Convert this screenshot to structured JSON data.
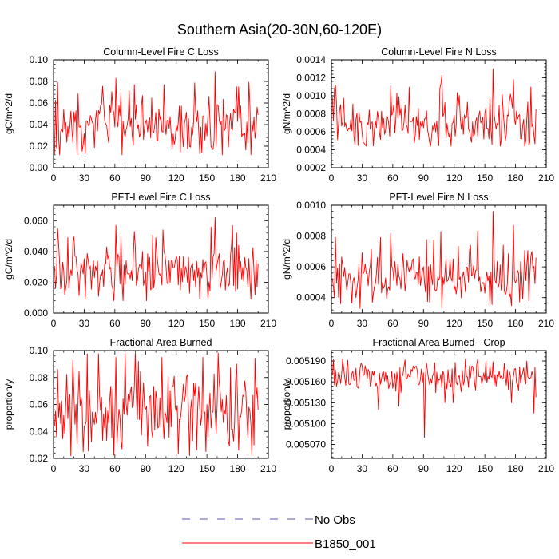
{
  "figure": {
    "title": "Southern Asia(20-30N,60-120E)"
  },
  "legend": [
    {
      "label": "No Obs",
      "style": "dashed",
      "color": "#5a5aa8"
    },
    {
      "label": "B1850_001",
      "style": "solid",
      "color": "#ff0000"
    }
  ],
  "chart_data": [
    {
      "type": "line",
      "title": "Column-Level Fire C Loss",
      "ylabel": "gC/m^2/d",
      "xlim": [
        0,
        210
      ],
      "ylim": [
        0.0,
        0.1
      ],
      "xticks": [
        "0",
        "30",
        "60",
        "90",
        "120",
        "150",
        "180",
        "210"
      ],
      "yticks": [
        "0.00",
        "0.02",
        "0.04",
        "0.06",
        "0.08",
        "0.10"
      ],
      "series": [
        {
          "name": "B1850_001",
          "color": "#ff0000",
          "n": 200,
          "base": 0.037,
          "amp": 0.012,
          "min": 0.012,
          "max": 0.089,
          "peaks": [
            [
              3,
              0.079
            ],
            [
              60,
              0.083
            ],
            [
              65,
              0.07
            ],
            [
              78,
              0.077
            ],
            [
              107,
              0.077
            ],
            [
              157,
              0.089
            ],
            [
              178,
              0.075
            ]
          ],
          "dips": [
            [
              30,
              0.013
            ],
            [
              142,
              0.013
            ],
            [
              192,
              0.012
            ]
          ],
          "end": 0.049
        }
      ]
    },
    {
      "type": "line",
      "title": "Column-Level Fire N Loss",
      "ylabel": "gN/m^2/d",
      "xlim": [
        0,
        210
      ],
      "ylim": [
        0.0002,
        0.0014
      ],
      "xticks": [
        "0",
        "30",
        "60",
        "90",
        "120",
        "150",
        "180",
        "210"
      ],
      "yticks": [
        "0.0002",
        "0.0004",
        "0.0006",
        "0.0008",
        "0.0010",
        "0.0012",
        "0.0014"
      ],
      "series": [
        {
          "name": "B1850_001",
          "color": "#ff0000",
          "n": 200,
          "base": 0.00068,
          "amp": 0.00013,
          "min": 0.00044,
          "max": 0.0013,
          "peaks": [
            [
              2,
              0.00108
            ],
            [
              57,
              0.00111
            ],
            [
              63,
              0.00103
            ],
            [
              106,
              0.00113
            ],
            [
              157,
              0.0013
            ],
            [
              177,
              0.00118
            ]
          ],
          "dips": [
            [
              30,
              0.00048
            ],
            [
              95,
              0.00048
            ],
            [
              192,
              0.00045
            ]
          ],
          "end": 0.00085
        }
      ]
    },
    {
      "type": "line",
      "title": "PFT-Level Fire C Loss",
      "ylabel": "gC/m^2/d",
      "xlim": [
        0,
        210
      ],
      "ylim": [
        0.0,
        0.07
      ],
      "xticks": [
        "0",
        "30",
        "60",
        "90",
        "120",
        "150",
        "180",
        "210"
      ],
      "yticks": [
        "0.000",
        "0.020",
        "0.040",
        "0.060"
      ],
      "series": [
        {
          "name": "B1850_001",
          "color": "#ff0000",
          "n": 200,
          "base": 0.025,
          "amp": 0.008,
          "min": 0.008,
          "max": 0.062,
          "peaks": [
            [
              3,
              0.055
            ],
            [
              60,
              0.057
            ],
            [
              65,
              0.05
            ],
            [
              78,
              0.053
            ],
            [
              106,
              0.054
            ],
            [
              157,
              0.062
            ],
            [
              178,
              0.052
            ]
          ],
          "dips": [
            [
              30,
              0.009
            ],
            [
              142,
              0.009
            ],
            [
              192,
              0.009
            ]
          ],
          "end": 0.032
        }
      ]
    },
    {
      "type": "line",
      "title": "PFT-Level Fire N Loss",
      "ylabel": "gN/m^2/d",
      "xlim": [
        0,
        210
      ],
      "ylim": [
        0.0003,
        0.001
      ],
      "xticks": [
        "0",
        "30",
        "60",
        "90",
        "120",
        "150",
        "180",
        "210"
      ],
      "yticks": [
        "0.0004",
        "0.0006",
        "0.0008",
        "0.0010"
      ],
      "series": [
        {
          "name": "B1850_001",
          "color": "#ff0000",
          "n": 200,
          "base": 0.00053,
          "amp": 8e-05,
          "min": 0.00033,
          "max": 0.00096,
          "peaks": [
            [
              3,
              0.00079
            ],
            [
              57,
              0.00082
            ],
            [
              106,
              0.00083
            ],
            [
              157,
              0.00096
            ],
            [
              177,
              0.00087
            ]
          ],
          "dips": [
            [
              27,
              0.00033
            ],
            [
              95,
              0.00037
            ],
            [
              192,
              0.00038
            ]
          ],
          "end": 0.00066
        }
      ]
    },
    {
      "type": "line",
      "title": "Fractional Area Burned",
      "ylabel": "proportion/y",
      "xlim": [
        0,
        210
      ],
      "ylim": [
        0.02,
        0.1
      ],
      "xticks": [
        "0",
        "30",
        "60",
        "90",
        "120",
        "150",
        "180",
        "210"
      ],
      "yticks": [
        "0.02",
        "0.04",
        "0.06",
        "0.08",
        "0.10"
      ],
      "series": [
        {
          "name": "B1850_001",
          "color": "#ff0000",
          "n": 200,
          "base": 0.054,
          "amp": 0.013,
          "min": 0.022,
          "max": 0.098,
          "peaks": [
            [
              3,
              0.086
            ],
            [
              60,
              0.095
            ],
            [
              105,
              0.095
            ],
            [
              145,
              0.095
            ],
            [
              160,
              0.098
            ],
            [
              178,
              0.09
            ]
          ],
          "dips": [
            [
              28,
              0.025
            ],
            [
              66,
              0.027
            ],
            [
              148,
              0.025
            ],
            [
              193,
              0.022
            ]
          ],
          "end": 0.056
        }
      ]
    },
    {
      "type": "line",
      "title": "Fractional Area Burned - Crop",
      "ylabel": "proportion/y",
      "xlim": [
        0,
        210
      ],
      "ylim": [
        0.00505,
        0.005205
      ],
      "xticks": [
        "0",
        "30",
        "60",
        "90",
        "120",
        "150",
        "180",
        "210"
      ],
      "yticks": [
        "0.005070",
        "0.005100",
        "0.005130",
        "0.005160",
        "0.005190"
      ],
      "series": [
        {
          "name": "B1850_001",
          "color": "#ff0000",
          "n": 200,
          "base": 0.005165,
          "amp": 9e-06,
          "min": 0.00508,
          "max": 0.005193,
          "peaks": [
            [
              10,
              0.005193
            ],
            [
              120,
              0.005188
            ],
            [
              150,
              0.00519
            ],
            [
              190,
              0.00519
            ]
          ],
          "dips": [
            [
              45,
              0.00512
            ],
            [
              65,
              0.005125
            ],
            [
              90,
              0.00508
            ],
            [
              110,
              0.00513
            ],
            [
              118,
              0.00513
            ],
            [
              175,
              0.00513
            ],
            [
              197,
              0.005115
            ]
          ],
          "end": 0.005138
        }
      ]
    }
  ]
}
